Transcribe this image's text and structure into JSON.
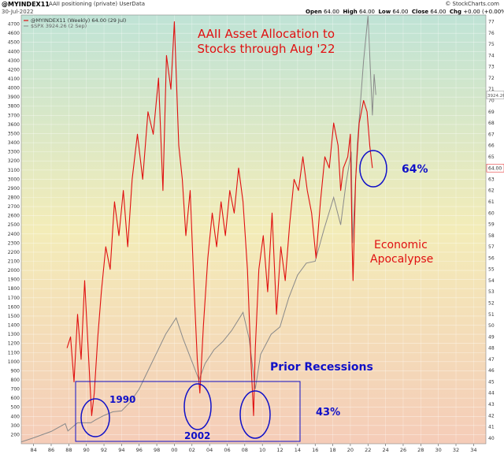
{
  "header": {
    "symbol": "@MYINDEX11",
    "description": "AAII positioning (private) UserData",
    "date": "30-Jul-2022",
    "open_label": "Open",
    "open": "64.00",
    "high_label": "High",
    "high": "64.00",
    "low_label": "Low",
    "low": "64.00",
    "close_label": "Close",
    "close": "64.00",
    "chg_label": "Chg",
    "chg": "+0.00 (+0.00%)",
    "brand": "© StockCharts.com"
  },
  "legend": {
    "line1": "@MYINDEX11 (Weekly) 64.00 (29 Jul)",
    "line2": "$SPX 3924.26 (2 Sep)"
  },
  "colors": {
    "aaii": "#e01010",
    "spx": "#8a8a8a",
    "annotation_blue": "#1010c8",
    "annotation_red": "#e01010",
    "bg_top": "#bfe3d6",
    "bg_mid": "#f3ecb8",
    "bg_bottom": "#f5ccb8"
  },
  "chart_data": {
    "type": "line",
    "title": "AAII Asset Allocation to Stocks through Aug '22",
    "y_left_ticks": [
      200,
      300,
      400,
      500,
      600,
      700,
      800,
      900,
      1000,
      1100,
      1200,
      1300,
      1400,
      1500,
      1600,
      1700,
      1800,
      1900,
      2000,
      2100,
      2200,
      2300,
      2400,
      2500,
      2600,
      2700,
      2800,
      2900,
      3000,
      3100,
      3200,
      3300,
      3400,
      3500,
      3600,
      3700,
      3800,
      3900,
      4000,
      4100,
      4200,
      4300,
      4400,
      4500,
      4600,
      4700
    ],
    "y_right_ticks": [
      40,
      41,
      42,
      43,
      44,
      45,
      46,
      47,
      48,
      49,
      50,
      51,
      52,
      53,
      54,
      55,
      56,
      57,
      58,
      59,
      60,
      61,
      62,
      63,
      64,
      65,
      66,
      67,
      68,
      69,
      70,
      71,
      72,
      73,
      74,
      75,
      76,
      77
    ],
    "x_ticks": [
      "84",
      "86",
      "88",
      "90",
      "92",
      "94",
      "96",
      "98",
      "00",
      "02",
      "04",
      "06",
      "08",
      "10",
      "12",
      "14",
      "16",
      "18",
      "20",
      "22",
      "24",
      "26",
      "28",
      "30",
      "32",
      "34"
    ],
    "ylim_left": [
      100,
      4800
    ],
    "ylim_right": [
      39.5,
      77.6
    ],
    "xlim": [
      1982.6,
      2035.4
    ],
    "right_axis_markers": {
      "spx": "3924.26",
      "aaii": "64.00"
    },
    "series": [
      {
        "name": "@MYINDEX11",
        "axis": "right",
        "points": [
          [
            1987.8,
            48
          ],
          [
            1988.2,
            49
          ],
          [
            1988.6,
            45
          ],
          [
            1989.0,
            51
          ],
          [
            1989.4,
            47
          ],
          [
            1989.8,
            54
          ],
          [
            1990.2,
            48
          ],
          [
            1990.6,
            42
          ],
          [
            1990.9,
            44
          ],
          [
            1991.3,
            49
          ],
          [
            1991.7,
            53
          ],
          [
            1992.2,
            57
          ],
          [
            1992.7,
            55
          ],
          [
            1993.2,
            61
          ],
          [
            1993.7,
            58
          ],
          [
            1994.2,
            62
          ],
          [
            1994.7,
            57
          ],
          [
            1995.2,
            63
          ],
          [
            1995.8,
            67
          ],
          [
            1996.4,
            63
          ],
          [
            1997.0,
            69
          ],
          [
            1997.6,
            67
          ],
          [
            1998.2,
            72
          ],
          [
            1998.7,
            62
          ],
          [
            1999.1,
            74
          ],
          [
            1999.6,
            71
          ],
          [
            2000.0,
            77
          ],
          [
            2000.5,
            66
          ],
          [
            2000.9,
            63
          ],
          [
            2001.3,
            58
          ],
          [
            2001.8,
            62
          ],
          [
            2002.2,
            54
          ],
          [
            2002.6,
            47
          ],
          [
            2002.9,
            44
          ],
          [
            2003.3,
            50
          ],
          [
            2003.8,
            56
          ],
          [
            2004.3,
            60
          ],
          [
            2004.8,
            57
          ],
          [
            2005.3,
            61
          ],
          [
            2005.8,
            58
          ],
          [
            2006.3,
            62
          ],
          [
            2006.8,
            60
          ],
          [
            2007.3,
            64
          ],
          [
            2007.8,
            61
          ],
          [
            2008.3,
            55
          ],
          [
            2008.7,
            47
          ],
          [
            2009.0,
            42
          ],
          [
            2009.2,
            48
          ],
          [
            2009.6,
            55
          ],
          [
            2010.1,
            58
          ],
          [
            2010.6,
            53
          ],
          [
            2011.1,
            60
          ],
          [
            2011.6,
            51
          ],
          [
            2012.1,
            57
          ],
          [
            2012.6,
            54
          ],
          [
            2013.1,
            59
          ],
          [
            2013.6,
            63
          ],
          [
            2014.1,
            62
          ],
          [
            2014.6,
            65
          ],
          [
            2015.1,
            62
          ],
          [
            2015.6,
            60
          ],
          [
            2016.1,
            56
          ],
          [
            2016.6,
            61
          ],
          [
            2017.1,
            65
          ],
          [
            2017.6,
            64
          ],
          [
            2018.1,
            68
          ],
          [
            2018.6,
            66
          ],
          [
            2018.9,
            62
          ],
          [
            2019.2,
            64
          ],
          [
            2019.7,
            65
          ],
          [
            2020.0,
            67
          ],
          [
            2020.2,
            57
          ],
          [
            2020.3,
            54
          ],
          [
            2020.6,
            63
          ],
          [
            2021.0,
            68
          ],
          [
            2021.5,
            70
          ],
          [
            2021.9,
            69
          ],
          [
            2022.2,
            66
          ],
          [
            2022.5,
            64
          ]
        ]
      },
      {
        "name": "$SPX",
        "axis": "left",
        "points": [
          [
            1982.6,
            120
          ],
          [
            1984,
            165
          ],
          [
            1986,
            235
          ],
          [
            1987.6,
            320
          ],
          [
            1987.9,
            240
          ],
          [
            1989,
            330
          ],
          [
            1990.5,
            330
          ],
          [
            1991,
            360
          ],
          [
            1992,
            410
          ],
          [
            1993,
            450
          ],
          [
            1994,
            460
          ],
          [
            1995,
            560
          ],
          [
            1996,
            700
          ],
          [
            1997,
            900
          ],
          [
            1998,
            1100
          ],
          [
            1999,
            1300
          ],
          [
            2000.2,
            1480
          ],
          [
            2001,
            1250
          ],
          [
            2002,
            1000
          ],
          [
            2002.8,
            800
          ],
          [
            2003.5,
            980
          ],
          [
            2004.5,
            1130
          ],
          [
            2005.5,
            1220
          ],
          [
            2006.5,
            1340
          ],
          [
            2007.8,
            1540
          ],
          [
            2008.5,
            1250
          ],
          [
            2009.2,
            700
          ],
          [
            2009.8,
            1080
          ],
          [
            2011,
            1300
          ],
          [
            2012,
            1380
          ],
          [
            2013,
            1700
          ],
          [
            2014,
            1950
          ],
          [
            2015,
            2080
          ],
          [
            2016,
            2100
          ],
          [
            2017,
            2450
          ],
          [
            2018.1,
            2800
          ],
          [
            2018.9,
            2500
          ],
          [
            2019.5,
            2950
          ],
          [
            2020.1,
            3300
          ],
          [
            2020.25,
            2300
          ],
          [
            2020.8,
            3400
          ],
          [
            2021.5,
            4300
          ],
          [
            2022.0,
            4790
          ],
          [
            2022.5,
            3700
          ],
          [
            2022.7,
            4150
          ],
          [
            2022.9,
            3924
          ]
        ]
      }
    ],
    "annotations": [
      {
        "text": "AAII Asset Allocation to",
        "color": "red"
      },
      {
        "text": "Stocks through Aug '22",
        "color": "red"
      },
      {
        "text": "64%",
        "color": "blue"
      },
      {
        "text": "Economic",
        "color": "red"
      },
      {
        "text": "Apocalypse",
        "color": "red"
      },
      {
        "text": "Prior Recessions",
        "color": "blue"
      },
      {
        "text": "1990",
        "color": "blue"
      },
      {
        "text": "2002",
        "color": "blue"
      },
      {
        "text": "43%",
        "color": "blue"
      }
    ]
  }
}
